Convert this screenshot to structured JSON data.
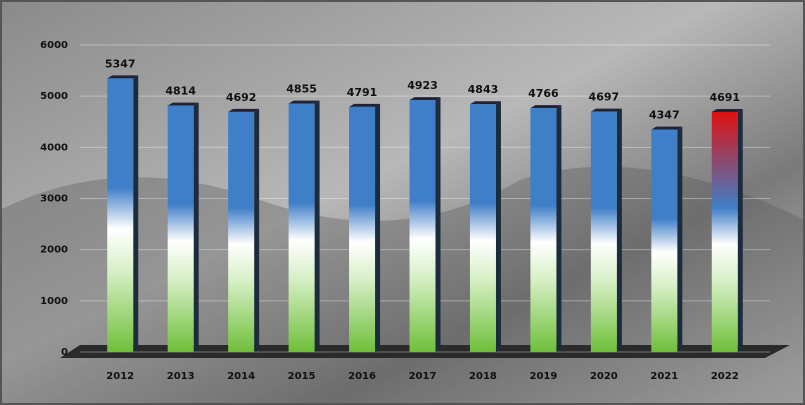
{
  "chart_data": {
    "type": "bar",
    "categories": [
      "2012",
      "2013",
      "2014",
      "2015",
      "2016",
      "2017",
      "2018",
      "2019",
      "2020",
      "2021",
      "2022"
    ],
    "values": [
      5347,
      4814,
      4692,
      4855,
      4791,
      4923,
      4843,
      4766,
      4697,
      4347,
      4691
    ],
    "colors": [
      "#3f7fc8",
      "#3f7fc8",
      "#3f7fc8",
      "#3f7fc8",
      "#3f7fc8",
      "#3f7fc8",
      "#3f7fc8",
      "#3f7fc8",
      "#3f7fc8",
      "#3f7fc8",
      "#e01010"
    ],
    "ylim": [
      0,
      6000
    ],
    "yticks": [
      0,
      1000,
      2000,
      3000,
      4000,
      5000,
      6000
    ],
    "grid": true
  }
}
